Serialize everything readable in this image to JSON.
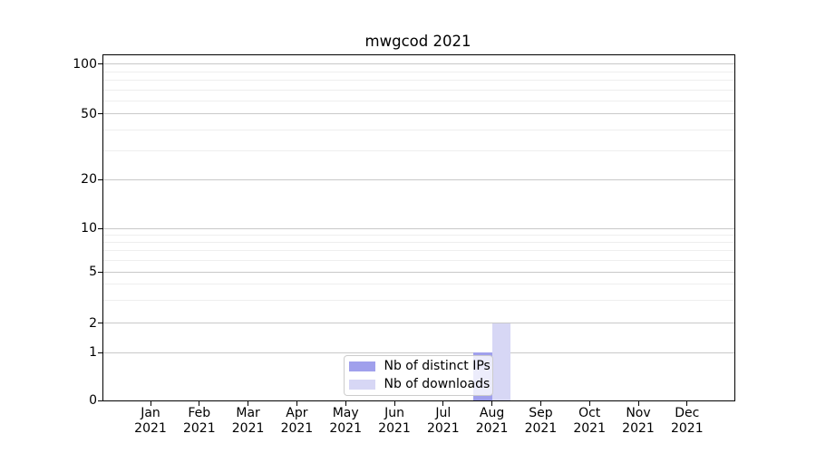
{
  "chart_data": {
    "type": "bar",
    "title": "mwgcod 2021",
    "x_labels": [
      {
        "month": "Jan",
        "year": "2021"
      },
      {
        "month": "Feb",
        "year": "2021"
      },
      {
        "month": "Mar",
        "year": "2021"
      },
      {
        "month": "Apr",
        "year": "2021"
      },
      {
        "month": "May",
        "year": "2021"
      },
      {
        "month": "Jun",
        "year": "2021"
      },
      {
        "month": "Jul",
        "year": "2021"
      },
      {
        "month": "Aug",
        "year": "2021"
      },
      {
        "month": "Sep",
        "year": "2021"
      },
      {
        "month": "Oct",
        "year": "2021"
      },
      {
        "month": "Nov",
        "year": "2021"
      },
      {
        "month": "Dec",
        "year": "2021"
      }
    ],
    "series": [
      {
        "name": "Nb of distinct IPs",
        "color": "#a0a0ec",
        "values": [
          0,
          0,
          0,
          0,
          0,
          0,
          0,
          1,
          0,
          0,
          0,
          0
        ]
      },
      {
        "name": "Nb of downloads",
        "color": "#d7d7f5",
        "values": [
          0,
          0,
          0,
          0,
          0,
          0,
          0,
          2,
          0,
          0,
          0,
          0
        ]
      }
    ],
    "yscale": "symlog",
    "yticks": [
      0,
      1,
      2,
      5,
      10,
      20,
      50,
      100
    ],
    "yticks_minor": [
      3,
      4,
      6,
      7,
      8,
      9,
      30,
      40,
      60,
      70,
      80,
      90
    ],
    "ylim": [
      0,
      114
    ],
    "grid": {
      "major_color": "#c9c9c9",
      "minor_color": "#eeeeee"
    },
    "legend": {
      "location": "lower center"
    }
  }
}
